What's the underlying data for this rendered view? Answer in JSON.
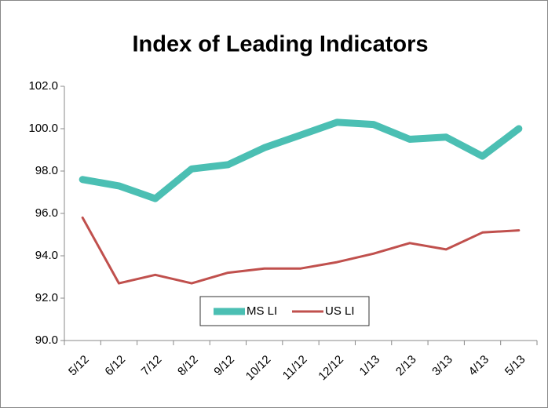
{
  "chart_data": {
    "type": "line",
    "title": "Index of Leading Indicators",
    "categories": [
      "5/12",
      "6/12",
      "7/12",
      "8/12",
      "9/12",
      "10/12",
      "11/12",
      "12/12",
      "1/13",
      "2/13",
      "3/13",
      "4/13",
      "5/13"
    ],
    "series": [
      {
        "name": "MS LI",
        "color": "#4bbfb3",
        "values": [
          97.6,
          97.3,
          96.7,
          98.1,
          98.3,
          99.1,
          99.7,
          100.3,
          100.2,
          99.5,
          99.6,
          98.7,
          100.0
        ]
      },
      {
        "name": "US LI",
        "color": "#c0504d",
        "values": [
          95.8,
          92.7,
          93.1,
          92.7,
          93.2,
          93.4,
          93.4,
          93.7,
          94.1,
          94.6,
          94.3,
          95.1,
          95.2
        ]
      }
    ],
    "ylim": [
      90,
      102
    ],
    "yticks": [
      {
        "value": 90,
        "label": "90.0"
      },
      {
        "value": 92,
        "label": "92.0"
      },
      {
        "value": 94,
        "label": "94.0"
      },
      {
        "value": 96,
        "label": "96.0"
      },
      {
        "value": 98,
        "label": "98.0"
      },
      {
        "value": 100,
        "label": "100.0"
      },
      {
        "value": 102,
        "label": "102.0"
      }
    ],
    "grid": false
  }
}
